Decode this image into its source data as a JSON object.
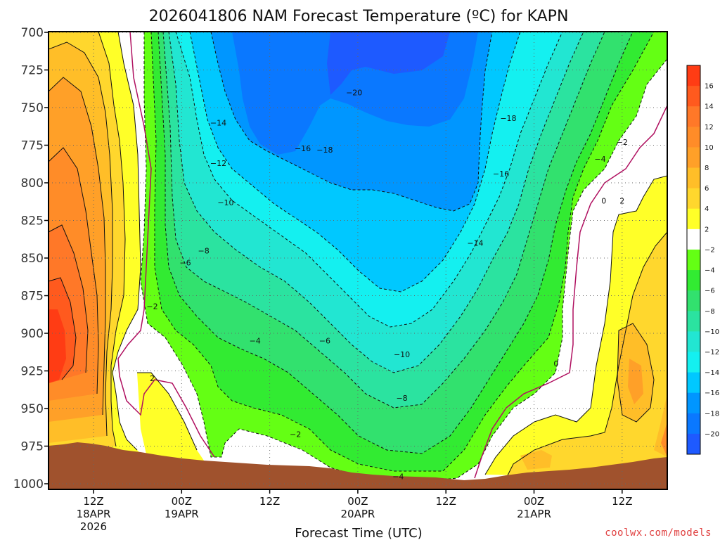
{
  "chart_data": {
    "type": "heatmap",
    "title": "2026041806 NAM Forecast Temperature (ºC) for KAPN",
    "xlabel": "Forecast Time (UTC)",
    "y_ticks": [
      "700",
      "725",
      "750",
      "775",
      "800",
      "825",
      "850",
      "875",
      "900",
      "925",
      "950",
      "975",
      "1000"
    ],
    "y_range_hPa": [
      700,
      1000
    ],
    "y_direction": "pressure increases downward",
    "x_ticks": [
      {
        "line1": "12Z",
        "line2": "18APR",
        "line3": "2026"
      },
      {
        "line1": "00Z",
        "line2": "19APR",
        "line3": ""
      },
      {
        "line1": "12Z",
        "line2": "",
        "line3": ""
      },
      {
        "line1": "00Z",
        "line2": "20APR",
        "line3": ""
      },
      {
        "line1": "12Z",
        "line2": "",
        "line3": ""
      },
      {
        "line1": "00Z",
        "line2": "21APR",
        "line3": ""
      },
      {
        "line1": "12Z",
        "line2": "",
        "line3": ""
      }
    ],
    "x_range_hours": [
      0,
      84
    ],
    "x_tick_hours": [
      6,
      18,
      30,
      42,
      54,
      66,
      78
    ],
    "grid": true,
    "colorbar": {
      "position": "right",
      "labels": [
        "16",
        "14",
        "12",
        "10",
        "8",
        "6",
        "4",
        "2",
        "−2",
        "−4",
        "−6",
        "−8",
        "−10",
        "−12",
        "−14",
        "−16",
        "−18",
        "−20"
      ],
      "bins": [
        {
          "from": 16,
          "to": 18,
          "color": "#ff3c14"
        },
        {
          "from": 14,
          "to": 16,
          "color": "#ff5a1e"
        },
        {
          "from": 12,
          "to": 14,
          "color": "#ff7828"
        },
        {
          "from": 10,
          "to": 12,
          "color": "#ff8c28"
        },
        {
          "from": 8,
          "to": 10,
          "color": "#ffa028"
        },
        {
          "from": 6,
          "to": 8,
          "color": "#ffbe28"
        },
        {
          "from": 4,
          "to": 6,
          "color": "#ffd72d"
        },
        {
          "from": 2,
          "to": 4,
          "color": "#ffff28"
        },
        {
          "from": -2,
          "to": 2,
          "color": "#ffffff"
        },
        {
          "from": -4,
          "to": -2,
          "color": "#64ff14"
        },
        {
          "from": -6,
          "to": -4,
          "color": "#32eb32"
        },
        {
          "from": -8,
          "to": -6,
          "color": "#32e16e"
        },
        {
          "from": -10,
          "to": -8,
          "color": "#2be3a0"
        },
        {
          "from": -12,
          "to": -10,
          "color": "#22e6d2"
        },
        {
          "from": -14,
          "to": -12,
          "color": "#14f0f0"
        },
        {
          "from": -16,
          "to": -14,
          "color": "#00c8ff"
        },
        {
          "from": -18,
          "to": -16,
          "color": "#0096ff"
        },
        {
          "from": -20,
          "to": -18,
          "color": "#0a78ff"
        },
        {
          "from": -22,
          "to": -20,
          "color": "#1e5aff"
        }
      ]
    },
    "contour_labels": [
      {
        "text": "−20",
        "hour": 41.5,
        "p": 740
      },
      {
        "text": "−18",
        "hour": 62.5,
        "p": 757
      },
      {
        "text": "−18",
        "hour": 37.5,
        "p": 778
      },
      {
        "text": "−16",
        "hour": 34.5,
        "p": 777
      },
      {
        "text": "−16",
        "hour": 61.5,
        "p": 794
      },
      {
        "text": "−14",
        "hour": 23,
        "p": 760
      },
      {
        "text": "−14",
        "hour": 58,
        "p": 840
      },
      {
        "text": "−12",
        "hour": 23,
        "p": 787
      },
      {
        "text": "−10",
        "hour": 24,
        "p": 813
      },
      {
        "text": "−10",
        "hour": 48,
        "p": 914
      },
      {
        "text": "−8",
        "hour": 21,
        "p": 845
      },
      {
        "text": "−8",
        "hour": 48,
        "p": 943
      },
      {
        "text": "−6",
        "hour": 18.5,
        "p": 853
      },
      {
        "text": "−6",
        "hour": 37.5,
        "p": 905
      },
      {
        "text": "−4",
        "hour": 28,
        "p": 905
      },
      {
        "text": "−4",
        "hour": 75,
        "p": 784
      },
      {
        "text": "−4",
        "hour": 47.5,
        "p": 995
      },
      {
        "text": "−2",
        "hour": 14,
        "p": 882
      },
      {
        "text": "−2",
        "hour": 33.5,
        "p": 967
      },
      {
        "text": "−2",
        "hour": 78,
        "p": 773
      },
      {
        "text": "0",
        "hour": 69,
        "p": 920
      },
      {
        "text": "0",
        "hour": 75.5,
        "p": 812
      },
      {
        "text": "2",
        "hour": 14,
        "p": 930
      },
      {
        "text": "2",
        "hour": 78,
        "p": 812
      }
    ],
    "annotation": "coolwx.com/models"
  }
}
